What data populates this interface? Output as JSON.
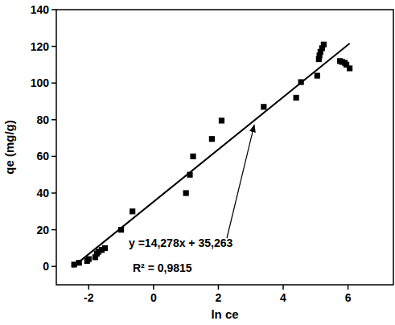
{
  "chart_data": {
    "type": "scatter",
    "x_label": "ln ce",
    "y_label": "qe (mg/g)",
    "annotations": [
      "y =14,278x + 35,263",
      "R² = 0,9815"
    ],
    "xlim": [
      -3,
      7.4
    ],
    "ylim": [
      -10,
      140
    ],
    "xticks": [
      -2,
      0,
      2,
      4,
      6
    ],
    "yticks": [
      0,
      20,
      40,
      60,
      80,
      100,
      120,
      140
    ],
    "grid": false,
    "series": [
      {
        "type": "scatter",
        "marker": "square",
        "color": "#000000",
        "x": [
          -2.45,
          -2.3,
          -2.05,
          -2.0,
          -1.8,
          -1.75,
          -1.7,
          -1.6,
          -1.5,
          -1.0,
          -0.65,
          1.0,
          1.12,
          1.22,
          1.8,
          2.1,
          3.4,
          4.4,
          4.55,
          5.05,
          5.1,
          5.12,
          5.15,
          5.2,
          5.25,
          5.75,
          5.82,
          5.9,
          5.95,
          6.05
        ],
        "values": [
          1,
          2,
          3,
          4,
          5,
          7,
          8,
          9,
          10,
          20,
          30,
          40,
          50,
          60,
          69.5,
          79.5,
          87,
          92,
          100.5,
          104,
          113,
          115,
          117,
          119,
          121,
          112,
          111.5,
          111,
          110,
          108
        ]
      },
      {
        "type": "line",
        "line_style": "solid",
        "color": "#000000",
        "x": [
          -2.5,
          6.05
        ],
        "values": [
          -0.4,
          121.6
        ]
      }
    ]
  }
}
